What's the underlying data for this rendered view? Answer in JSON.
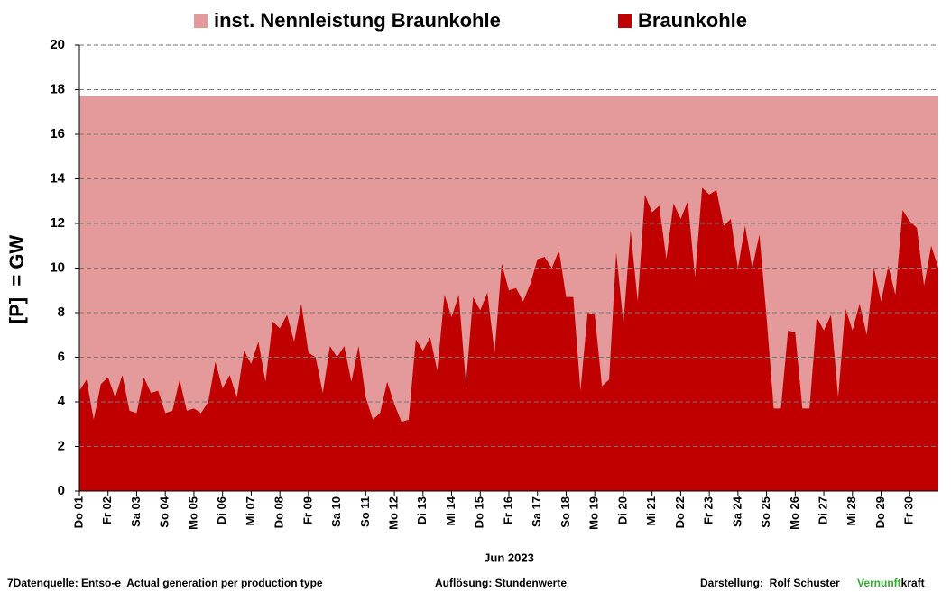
{
  "chart_data": {
    "type": "area",
    "ylabel": "[P]  = GW",
    "xlabel": "Jun 2023",
    "xlim": [
      0,
      30
    ],
    "xticks": [
      {
        "value": 0,
        "label": "Do 01"
      },
      {
        "value": 1,
        "label": "Fr 02"
      },
      {
        "value": 2,
        "label": "Sa 03"
      },
      {
        "value": 3,
        "label": "So 04"
      },
      {
        "value": 4,
        "label": "Mo 05"
      },
      {
        "value": 5,
        "label": "Di 06"
      },
      {
        "value": 6,
        "label": "Mi 07"
      },
      {
        "value": 7,
        "label": "Do 08"
      },
      {
        "value": 8,
        "label": "Fr 09"
      },
      {
        "value": 9,
        "label": "Sa 10"
      },
      {
        "value": 10,
        "label": "So 11"
      },
      {
        "value": 11,
        "label": "Mo 12"
      },
      {
        "value": 12,
        "label": "Di 13"
      },
      {
        "value": 13,
        "label": "Mi 14"
      },
      {
        "value": 14,
        "label": "Do 15"
      },
      {
        "value": 15,
        "label": "Fr 16"
      },
      {
        "value": 16,
        "label": "Sa 17"
      },
      {
        "value": 17,
        "label": "So 18"
      },
      {
        "value": 18,
        "label": "Mo 19"
      },
      {
        "value": 19,
        "label": "Di 20"
      },
      {
        "value": 20,
        "label": "Mi 21"
      },
      {
        "value": 21,
        "label": "Do 22"
      },
      {
        "value": 22,
        "label": "Fr 23"
      },
      {
        "value": 23,
        "label": "Sa 24"
      },
      {
        "value": 24,
        "label": "So 25"
      },
      {
        "value": 25,
        "label": "Mo 26"
      },
      {
        "value": 26,
        "label": "Di 27"
      },
      {
        "value": 27,
        "label": "Mi 28"
      },
      {
        "value": 28,
        "label": "Do 29"
      },
      {
        "value": 29,
        "label": "Fr 30"
      }
    ],
    "ylim": [
      0,
      20
    ],
    "yticks": [
      0,
      2,
      4,
      6,
      8,
      10,
      12,
      14,
      16,
      18,
      20
    ],
    "grid": true,
    "legend": "top",
    "series": [
      {
        "name": "inst. Nennleistung Braunkohle",
        "color": "#e49a9a",
        "x": [
          0,
          30
        ],
        "values": [
          17.7,
          17.7
        ]
      },
      {
        "name": "Braunkohle",
        "color": "#c00000",
        "x": [
          0,
          0.25,
          0.5,
          0.75,
          1,
          1.25,
          1.5,
          1.75,
          2,
          2.25,
          2.5,
          2.75,
          3,
          3.25,
          3.5,
          3.75,
          4,
          4.25,
          4.5,
          4.75,
          5,
          5.25,
          5.5,
          5.75,
          6,
          6.25,
          6.5,
          6.75,
          7,
          7.25,
          7.5,
          7.75,
          8,
          8.25,
          8.5,
          8.75,
          9,
          9.25,
          9.5,
          9.75,
          10,
          10.25,
          10.5,
          10.75,
          11,
          11.25,
          11.5,
          11.75,
          12,
          12.25,
          12.5,
          12.75,
          13,
          13.25,
          13.5,
          13.75,
          14,
          14.25,
          14.5,
          14.75,
          15,
          15.25,
          15.5,
          15.75,
          16,
          16.25,
          16.5,
          16.75,
          17,
          17.25,
          17.5,
          17.75,
          18,
          18.25,
          18.5,
          18.75,
          19,
          19.25,
          19.5,
          19.75,
          20,
          20.25,
          20.5,
          20.75,
          21,
          21.25,
          21.5,
          21.75,
          22,
          22.25,
          22.5,
          22.75,
          23,
          23.25,
          23.5,
          23.75,
          24,
          24.25,
          24.5,
          24.75,
          25,
          25.25,
          25.5,
          25.75,
          26,
          26.25,
          26.5,
          26.75,
          27,
          27.25,
          27.5,
          27.75,
          28,
          28.25,
          28.5,
          28.75,
          29,
          29.25,
          29.5,
          29.75,
          30
        ],
        "values": [
          4.5,
          5.0,
          3.2,
          4.8,
          5.1,
          4.2,
          5.2,
          3.6,
          3.5,
          5.1,
          4.4,
          4.5,
          3.5,
          3.6,
          5.0,
          3.6,
          3.7,
          3.5,
          4.0,
          5.8,
          4.6,
          5.2,
          4.2,
          6.3,
          5.7,
          6.7,
          4.9,
          7.6,
          7.3,
          7.9,
          6.7,
          8.4,
          6.2,
          6.0,
          4.4,
          6.5,
          6.0,
          6.5,
          4.9,
          6.5,
          4.2,
          3.2,
          3.5,
          4.9,
          3.9,
          3.1,
          3.2,
          6.8,
          6.3,
          6.9,
          5.4,
          8.8,
          7.8,
          8.8,
          4.8,
          8.7,
          8.1,
          8.9,
          6.2,
          10.2,
          9.0,
          9.1,
          8.5,
          9.3,
          10.4,
          10.5,
          10.0,
          10.8,
          8.7,
          8.7,
          4.5,
          8.0,
          7.9,
          4.7,
          5.0,
          10.7,
          7.5,
          11.7,
          8.5,
          13.3,
          12.5,
          12.8,
          10.4,
          12.9,
          12.2,
          13.0,
          9.6,
          13.6,
          13.3,
          13.5,
          11.9,
          12.2,
          10.0,
          11.9,
          10.0,
          11.5,
          7.8,
          3.7,
          3.7,
          7.2,
          7.1,
          3.7,
          3.7,
          7.8,
          7.2,
          7.9,
          4.2,
          8.2,
          7.2,
          8.4,
          7.0,
          10.0,
          8.5,
          10.1,
          8.8,
          12.6,
          12.1,
          11.8,
          9.2,
          11.0,
          10.0
        ]
      }
    ],
    "footer": {
      "source": "7Datenquelle: Entso-e  Actual generation per production type",
      "resolution": "Auflösung: Stundenwerte",
      "author": "Darstellung:  Rolf Schuster",
      "brand_a": "Vernunft",
      "brand_b": "kraft"
    }
  }
}
